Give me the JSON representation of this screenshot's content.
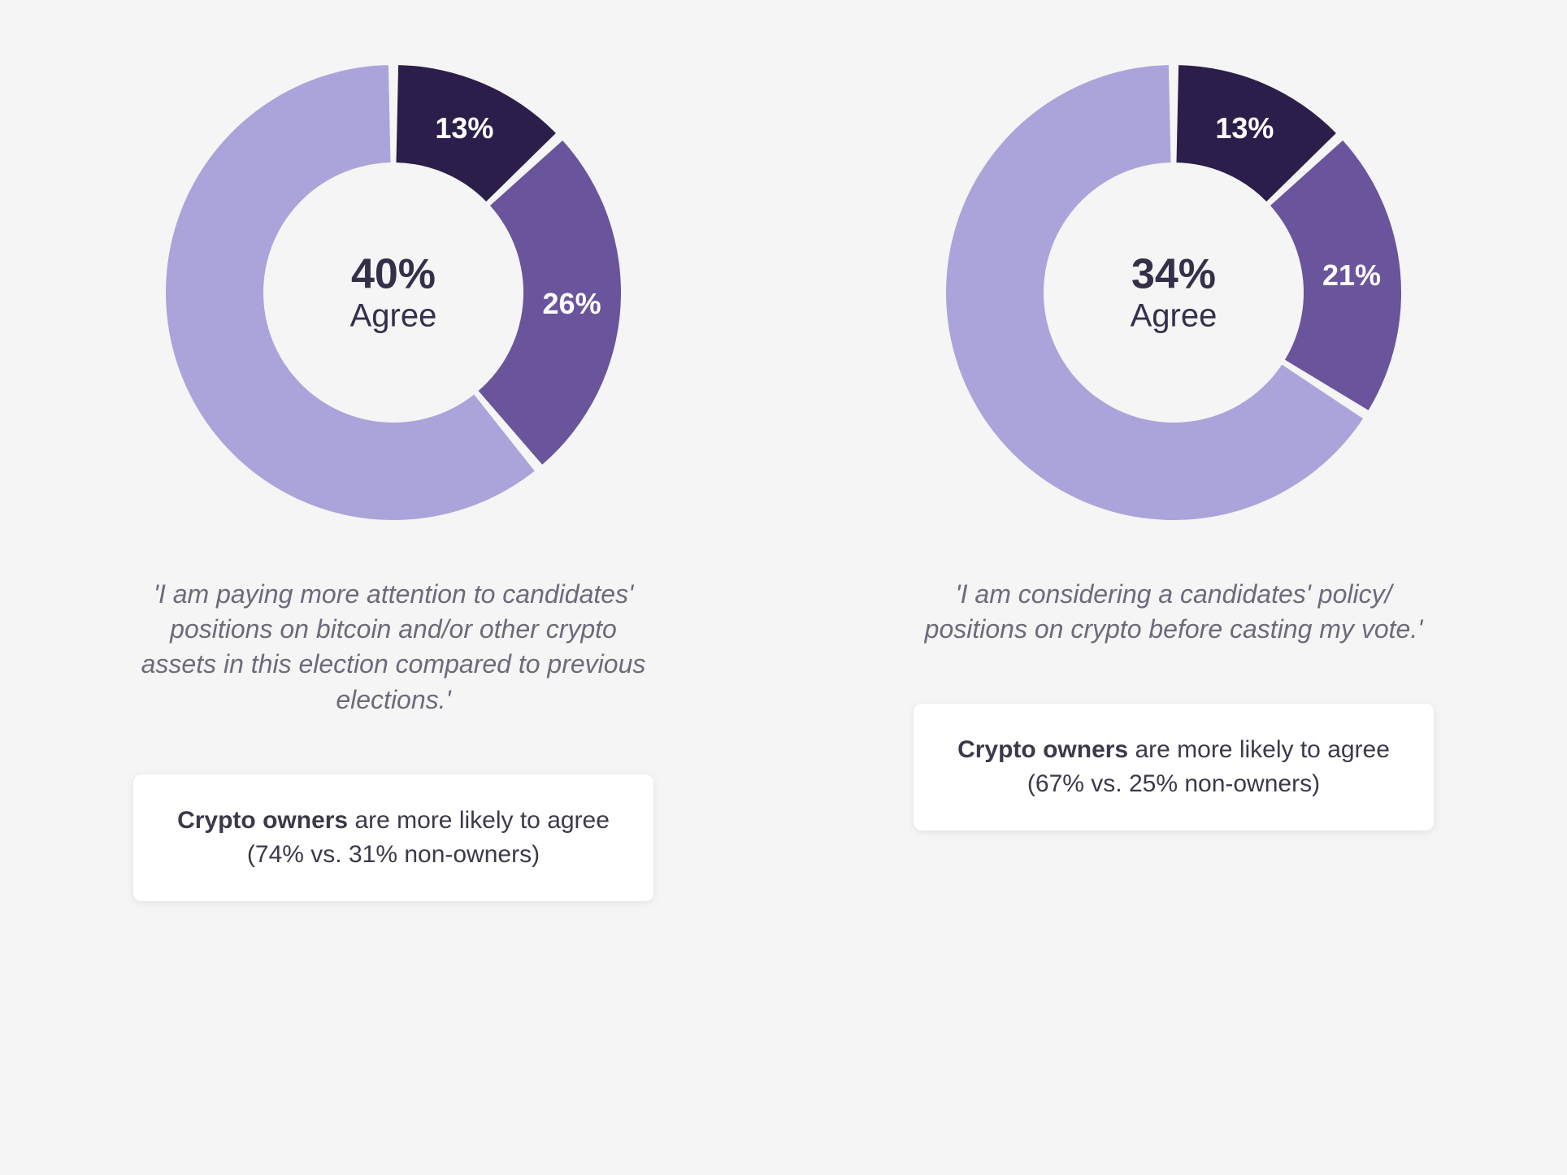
{
  "background_color": "#f5f5f5",
  "panels": [
    {
      "donut": {
        "type": "donut",
        "outer_radius": 280,
        "inner_radius": 160,
        "gap_deg": 2.5,
        "start_angle_deg": 0,
        "slices": [
          {
            "value": 13,
            "color": "#2c1e4a",
            "label": "13%"
          },
          {
            "value": 26,
            "color": "#6a549b",
            "label": "26%"
          },
          {
            "value": 61,
            "color": "#aba4da",
            "label": ""
          }
        ],
        "center_percent": "40%",
        "center_label": "Agree",
        "center_text_color": "#352f4a",
        "slice_label_color": "#ffffff",
        "slice_label_fontsize": 36
      },
      "caption": "'I am paying more attention to candidates' positions on bitcoin and/or other crypto assets in this election compared to previous elections.'",
      "note_bold": "Crypto owners",
      "note_rest": " are more likely to agree (74% vs. 31% non-owners)"
    },
    {
      "donut": {
        "type": "donut",
        "outer_radius": 280,
        "inner_radius": 160,
        "gap_deg": 2.5,
        "start_angle_deg": 0,
        "slices": [
          {
            "value": 13,
            "color": "#2c1e4a",
            "label": "13%"
          },
          {
            "value": 21,
            "color": "#6a549b",
            "label": "21%"
          },
          {
            "value": 66,
            "color": "#aba4da",
            "label": ""
          }
        ],
        "center_percent": "34%",
        "center_label": "Agree",
        "center_text_color": "#352f4a",
        "slice_label_color": "#ffffff",
        "slice_label_fontsize": 36
      },
      "caption": "'I am considering a candidates' policy/ positions on crypto before casting my vote.'",
      "note_bold": "Crypto owners",
      "note_rest": " are more likely to agree (67% vs. 25% non-owners)"
    }
  ]
}
